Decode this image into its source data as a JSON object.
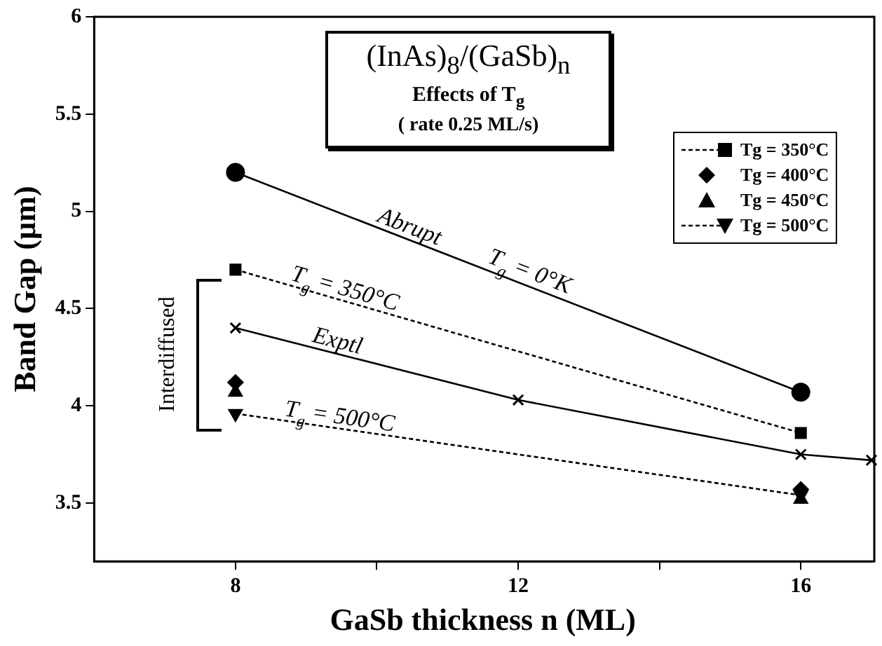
{
  "chart_data": {
    "type": "line",
    "title": "(InAs)$_{8}$/(GaSb)$_{n}$",
    "subtitle": "Effects of T$_{g}$",
    "xlabel": "GaSb thickness n (ML)",
    "ylabel": "Band Gap (µm)",
    "x": [
      8,
      16
    ],
    "xlim": [
      6,
      17
    ],
    "ylim": [
      3.2,
      6
    ],
    "xticks": [
      8,
      {
        "value": 10,
        "label": null
      },
      12,
      {
        "value": 14,
        "label": null
      },
      16
    ],
    "yticks": [
      3.5,
      4,
      4.5,
      5,
      5.5,
      6
    ],
    "grid": false,
    "legend": "top right",
    "series": [
      {
        "color": "#000000",
        "values": [
          5.2,
          4.07
        ],
        "marker": "circle",
        "line_style": "solid"
      },
      {
        "name": "Tg = 350°C",
        "color": "#000000",
        "values": [
          4.7,
          3.86
        ],
        "marker": "square",
        "line_style": "dashed"
      },
      {
        "name": "Tg = 400°C",
        "type": "scatter",
        "color": "#000000",
        "values": [
          4.12,
          3.57
        ],
        "marker": "diamond"
      },
      {
        "name": "Tg = 450°C",
        "type": "scatter",
        "color": "#000000",
        "values": [
          4.07,
          3.52
        ],
        "marker": "triangle"
      },
      {
        "name": "Tg = 500°C",
        "color": "#000000",
        "values": [
          3.96,
          3.54
        ],
        "marker": "triangle-down",
        "line_style": "dashed"
      },
      {
        "color": "#000000",
        "x": [
          8,
          12,
          16,
          17
        ],
        "values": [
          4.4,
          4.03,
          3.75,
          3.72
        ],
        "marker": "cross",
        "line_style": "solid"
      }
    ],
    "annotations": [
      "( rate 0.25 ML/s)",
      {
        "text": "Abrupt",
        "x": 10.4,
        "y": 4.86
      },
      {
        "text": "T$_{g}$ = 0°K",
        "x": 12.1,
        "y": 4.63
      },
      {
        "text": "T$_{g}$ = 350°C",
        "x": 9.5,
        "y": 4.54
      },
      {
        "text": "Exptl",
        "x": 9.4,
        "y": 4.27
      },
      {
        "text": "T$_{g}$ = 500°C",
        "x": 9.45,
        "y": 3.88
      },
      "Interdiffused"
    ]
  }
}
